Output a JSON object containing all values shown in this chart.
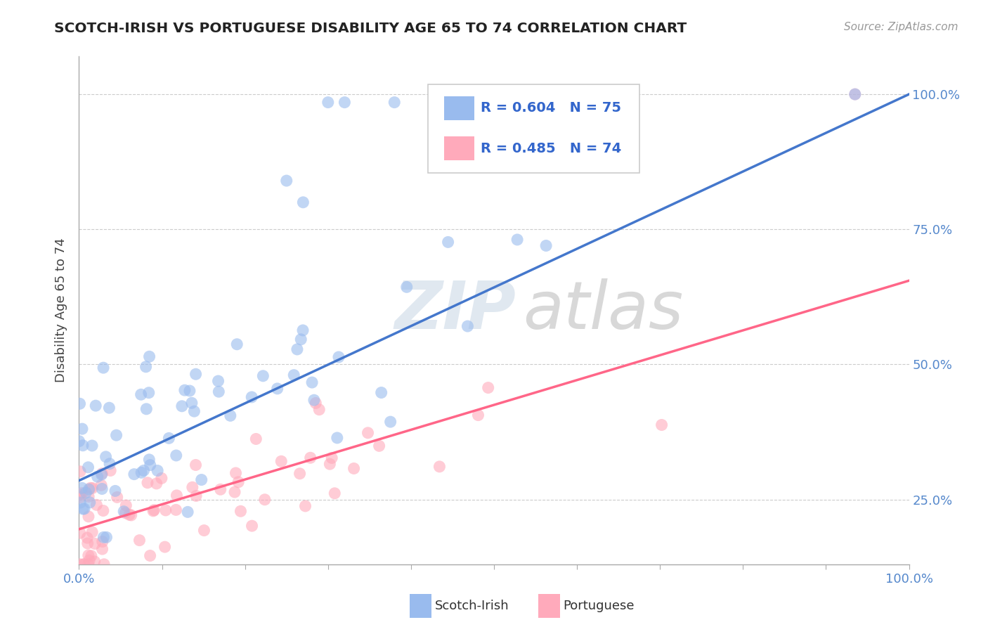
{
  "title": "SCOTCH-IRISH VS PORTUGUESE DISABILITY AGE 65 TO 74 CORRELATION CHART",
  "source": "Source: ZipAtlas.com",
  "ylabel": "Disability Age 65 to 74",
  "legend_label1": "Scotch-Irish",
  "legend_label2": "Portuguese",
  "r1": 0.604,
  "n1": 75,
  "r2": 0.485,
  "n2": 74,
  "xlim": [
    0.0,
    1.0
  ],
  "ylim": [
    0.13,
    1.07
  ],
  "yticks": [
    0.25,
    0.5,
    0.75,
    1.0
  ],
  "ytick_labels": [
    "25.0%",
    "50.0%",
    "75.0%",
    "100.0%"
  ],
  "color_blue": "#99BBEE",
  "color_pink": "#FFAABB",
  "color_blue_line": "#4477CC",
  "color_pink_line": "#FF6688",
  "watermark_zip": "ZIP",
  "watermark_atlas": "atlas",
  "background_color": "#FFFFFF",
  "blue_line_x": [
    0.0,
    1.0
  ],
  "blue_line_y": [
    0.285,
    1.0
  ],
  "pink_line_x": [
    0.0,
    1.0
  ],
  "pink_line_y": [
    0.195,
    0.655
  ]
}
